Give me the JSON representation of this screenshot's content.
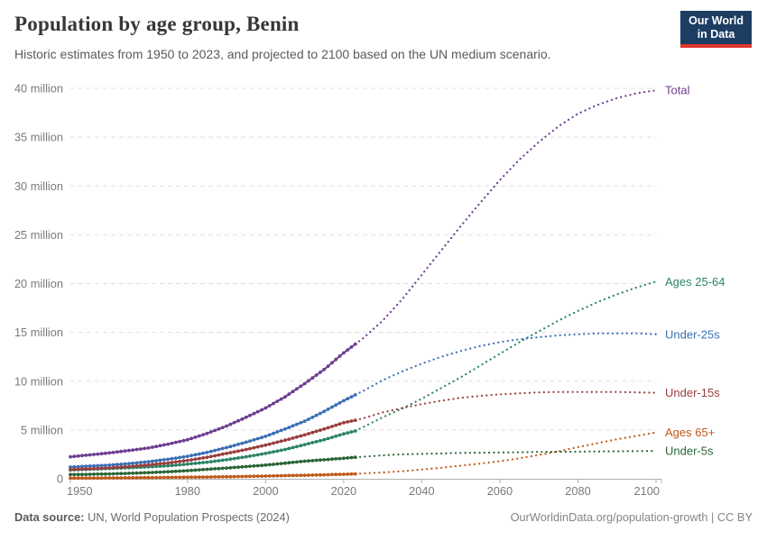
{
  "header": {
    "title": "Population by age group, Benin",
    "subtitle": "Historic estimates from 1950 to 2023, and projected to 2100 based on the UN medium scenario.",
    "logo": {
      "line1": "Our World",
      "line2": "in Data",
      "bg_color": "#1d3d63",
      "accent_color": "#e0362b"
    }
  },
  "footer": {
    "source_label": "Data source:",
    "source_text": " UN, World Population Prospects (2024)",
    "link_text": "OurWorldinData.org/population-growth | CC BY"
  },
  "chart_data": {
    "type": "line",
    "title": "Population by age group, Benin",
    "unit": "million people",
    "x_range": [
      1950,
      2100
    ],
    "ylim": [
      0,
      40
    ],
    "projection_start": 2023,
    "grid": "dashed horizontal",
    "legend_position": "right-edge labels",
    "x_ticks": [
      1950,
      1980,
      2000,
      2020,
      2040,
      2060,
      2080,
      2100
    ],
    "y_ticks": [
      {
        "value": 0,
        "label": "0"
      },
      {
        "value": 5,
        "label": "5 million"
      },
      {
        "value": 10,
        "label": "10 million"
      },
      {
        "value": 15,
        "label": "15 million"
      },
      {
        "value": 20,
        "label": "20 million"
      },
      {
        "value": 25,
        "label": "25 million"
      },
      {
        "value": 30,
        "label": "30 million"
      },
      {
        "value": 35,
        "label": "35 million"
      },
      {
        "value": 40,
        "label": "40 million"
      }
    ],
    "series": [
      {
        "name": "Total",
        "color": "#6d3e91",
        "points": [
          [
            1950,
            2.25
          ],
          [
            1955,
            2.45
          ],
          [
            1960,
            2.65
          ],
          [
            1965,
            2.9
          ],
          [
            1970,
            3.15
          ],
          [
            1975,
            3.55
          ],
          [
            1980,
            4.0
          ],
          [
            1985,
            4.65
          ],
          [
            1990,
            5.4
          ],
          [
            1995,
            6.3
          ],
          [
            2000,
            7.25
          ],
          [
            2005,
            8.4
          ],
          [
            2010,
            9.75
          ],
          [
            2015,
            11.2
          ],
          [
            2020,
            12.9
          ],
          [
            2023,
            13.8
          ],
          [
            2025,
            14.4
          ],
          [
            2030,
            16.2
          ],
          [
            2035,
            18.4
          ],
          [
            2040,
            20.9
          ],
          [
            2045,
            23.4
          ],
          [
            2050,
            25.9
          ],
          [
            2055,
            28.3
          ],
          [
            2060,
            30.6
          ],
          [
            2065,
            32.7
          ],
          [
            2070,
            34.5
          ],
          [
            2075,
            36.1
          ],
          [
            2080,
            37.4
          ],
          [
            2085,
            38.3
          ],
          [
            2090,
            39.0
          ],
          [
            2095,
            39.5
          ],
          [
            2100,
            39.8
          ]
        ]
      },
      {
        "name": "Ages 25-64",
        "color": "#2c8465",
        "points": [
          [
            1950,
            0.9
          ],
          [
            1955,
            0.97
          ],
          [
            1960,
            1.05
          ],
          [
            1965,
            1.13
          ],
          [
            1970,
            1.22
          ],
          [
            1975,
            1.33
          ],
          [
            1980,
            1.5
          ],
          [
            1985,
            1.7
          ],
          [
            1990,
            1.95
          ],
          [
            1995,
            2.25
          ],
          [
            2000,
            2.6
          ],
          [
            2005,
            3.0
          ],
          [
            2010,
            3.5
          ],
          [
            2015,
            4.0
          ],
          [
            2020,
            4.6
          ],
          [
            2023,
            4.9
          ],
          [
            2025,
            5.3
          ],
          [
            2030,
            6.3
          ],
          [
            2035,
            7.2
          ],
          [
            2040,
            8.2
          ],
          [
            2045,
            9.3
          ],
          [
            2050,
            10.4
          ],
          [
            2055,
            11.6
          ],
          [
            2060,
            12.8
          ],
          [
            2065,
            14.0
          ],
          [
            2070,
            15.1
          ],
          [
            2075,
            16.2
          ],
          [
            2080,
            17.2
          ],
          [
            2085,
            18.1
          ],
          [
            2090,
            18.9
          ],
          [
            2095,
            19.6
          ],
          [
            2100,
            20.2
          ]
        ]
      },
      {
        "name": "Under-25s",
        "color": "#3b6fb5",
        "points": [
          [
            1950,
            1.2
          ],
          [
            1955,
            1.3
          ],
          [
            1960,
            1.4
          ],
          [
            1965,
            1.55
          ],
          [
            1970,
            1.75
          ],
          [
            1975,
            2.0
          ],
          [
            1980,
            2.3
          ],
          [
            1985,
            2.7
          ],
          [
            1990,
            3.2
          ],
          [
            1995,
            3.75
          ],
          [
            2000,
            4.35
          ],
          [
            2005,
            5.1
          ],
          [
            2010,
            5.9
          ],
          [
            2015,
            6.9
          ],
          [
            2020,
            8.0
          ],
          [
            2023,
            8.6
          ],
          [
            2025,
            9.0
          ],
          [
            2030,
            10.1
          ],
          [
            2035,
            11.0
          ],
          [
            2040,
            11.8
          ],
          [
            2045,
            12.5
          ],
          [
            2050,
            13.1
          ],
          [
            2055,
            13.6
          ],
          [
            2060,
            14.0
          ],
          [
            2065,
            14.3
          ],
          [
            2070,
            14.5
          ],
          [
            2075,
            14.7
          ],
          [
            2080,
            14.8
          ],
          [
            2085,
            14.9
          ],
          [
            2090,
            14.9
          ],
          [
            2095,
            14.9
          ],
          [
            2100,
            14.8
          ]
        ]
      },
      {
        "name": "Under-15s",
        "color": "#9a3e3e",
        "points": [
          [
            1950,
            0.95
          ],
          [
            1955,
            1.03
          ],
          [
            1960,
            1.12
          ],
          [
            1965,
            1.25
          ],
          [
            1970,
            1.42
          ],
          [
            1975,
            1.62
          ],
          [
            1980,
            1.88
          ],
          [
            1985,
            2.2
          ],
          [
            1990,
            2.6
          ],
          [
            1995,
            3.0
          ],
          [
            2000,
            3.45
          ],
          [
            2005,
            3.95
          ],
          [
            2010,
            4.5
          ],
          [
            2015,
            5.1
          ],
          [
            2020,
            5.75
          ],
          [
            2023,
            6.0
          ],
          [
            2025,
            6.2
          ],
          [
            2030,
            6.8
          ],
          [
            2035,
            7.25
          ],
          [
            2040,
            7.65
          ],
          [
            2045,
            8.0
          ],
          [
            2050,
            8.3
          ],
          [
            2055,
            8.5
          ],
          [
            2060,
            8.65
          ],
          [
            2065,
            8.75
          ],
          [
            2070,
            8.85
          ],
          [
            2075,
            8.9
          ],
          [
            2080,
            8.9
          ],
          [
            2085,
            8.9
          ],
          [
            2090,
            8.9
          ],
          [
            2095,
            8.85
          ],
          [
            2100,
            8.8
          ]
        ]
      },
      {
        "name": "Ages 65+",
        "color": "#c05917",
        "points": [
          [
            1950,
            0.07
          ],
          [
            1955,
            0.08
          ],
          [
            1960,
            0.09
          ],
          [
            1965,
            0.1
          ],
          [
            1970,
            0.12
          ],
          [
            1975,
            0.14
          ],
          [
            1980,
            0.16
          ],
          [
            1985,
            0.18
          ],
          [
            1990,
            0.21
          ],
          [
            1995,
            0.24
          ],
          [
            2000,
            0.28
          ],
          [
            2005,
            0.32
          ],
          [
            2010,
            0.36
          ],
          [
            2015,
            0.41
          ],
          [
            2020,
            0.46
          ],
          [
            2023,
            0.5
          ],
          [
            2025,
            0.55
          ],
          [
            2030,
            0.65
          ],
          [
            2035,
            0.78
          ],
          [
            2040,
            0.95
          ],
          [
            2045,
            1.13
          ],
          [
            2050,
            1.35
          ],
          [
            2055,
            1.55
          ],
          [
            2060,
            1.8
          ],
          [
            2065,
            2.1
          ],
          [
            2070,
            2.45
          ],
          [
            2075,
            2.8
          ],
          [
            2080,
            3.25
          ],
          [
            2085,
            3.65
          ],
          [
            2090,
            4.05
          ],
          [
            2095,
            4.4
          ],
          [
            2100,
            4.75
          ]
        ]
      },
      {
        "name": "Under-5s",
        "color": "#2b6636",
        "points": [
          [
            1950,
            0.43
          ],
          [
            1955,
            0.46
          ],
          [
            1960,
            0.5
          ],
          [
            1965,
            0.56
          ],
          [
            1970,
            0.63
          ],
          [
            1975,
            0.72
          ],
          [
            1980,
            0.83
          ],
          [
            1985,
            0.97
          ],
          [
            1990,
            1.1
          ],
          [
            1995,
            1.25
          ],
          [
            2000,
            1.4
          ],
          [
            2005,
            1.6
          ],
          [
            2010,
            1.8
          ],
          [
            2015,
            1.95
          ],
          [
            2020,
            2.1
          ],
          [
            2023,
            2.2
          ],
          [
            2025,
            2.25
          ],
          [
            2030,
            2.4
          ],
          [
            2035,
            2.5
          ],
          [
            2040,
            2.55
          ],
          [
            2045,
            2.6
          ],
          [
            2050,
            2.65
          ],
          [
            2055,
            2.67
          ],
          [
            2060,
            2.7
          ],
          [
            2065,
            2.72
          ],
          [
            2070,
            2.75
          ],
          [
            2075,
            2.77
          ],
          [
            2080,
            2.78
          ],
          [
            2085,
            2.8
          ],
          [
            2090,
            2.82
          ],
          [
            2095,
            2.84
          ],
          [
            2100,
            2.85
          ]
        ]
      }
    ]
  }
}
